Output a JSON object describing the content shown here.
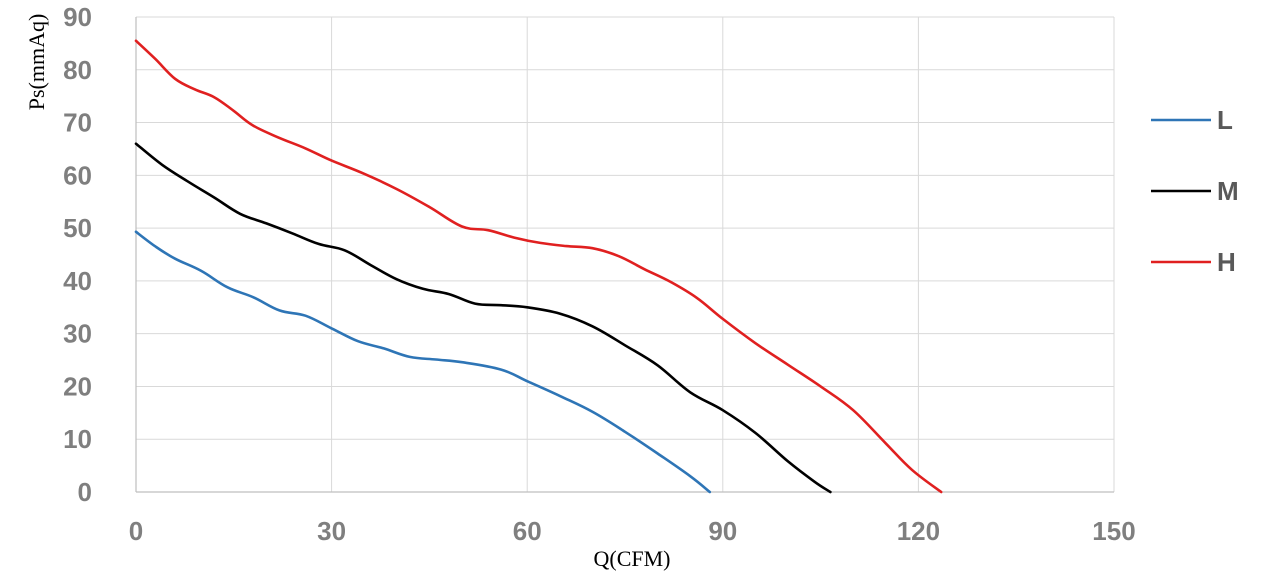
{
  "chart_data": {
    "type": "line",
    "xlabel": "Q(CFM)",
    "ylabel": "Ps(mmAq)",
    "xlim": [
      0,
      150
    ],
    "ylim": [
      0,
      90
    ],
    "xticks": [
      "0",
      "30",
      "60",
      "90",
      "120",
      "150"
    ],
    "yticks": [
      "0",
      "10",
      "20",
      "30",
      "40",
      "50",
      "60",
      "70",
      "80",
      "90"
    ],
    "grid": true,
    "legend_position": "right",
    "series": [
      {
        "name": "L",
        "color": "#2e75b6",
        "points": [
          [
            0,
            49.3
          ],
          [
            3,
            46.5
          ],
          [
            6,
            44.2
          ],
          [
            10,
            41.9
          ],
          [
            14,
            38.8
          ],
          [
            18,
            36.9
          ],
          [
            22,
            34.4
          ],
          [
            26,
            33.4
          ],
          [
            30,
            31
          ],
          [
            34,
            28.6
          ],
          [
            38,
            27.2
          ],
          [
            42,
            25.6
          ],
          [
            46,
            25.1
          ],
          [
            50,
            24.6
          ],
          [
            56,
            23.2
          ],
          [
            60,
            21
          ],
          [
            65,
            18.2
          ],
          [
            70,
            15.2
          ],
          [
            75,
            11.4
          ],
          [
            80,
            7.3
          ],
          [
            85,
            3
          ],
          [
            88,
            0
          ]
        ]
      },
      {
        "name": "M",
        "color": "#000000",
        "points": [
          [
            0,
            66
          ],
          [
            4,
            62
          ],
          [
            8,
            58.8
          ],
          [
            12,
            55.8
          ],
          [
            16,
            52.7
          ],
          [
            20,
            50.9
          ],
          [
            24,
            49
          ],
          [
            28,
            47
          ],
          [
            32,
            45.8
          ],
          [
            36,
            43
          ],
          [
            40,
            40.3
          ],
          [
            44,
            38.5
          ],
          [
            48,
            37.5
          ],
          [
            52,
            35.7
          ],
          [
            56,
            35.4
          ],
          [
            60,
            35
          ],
          [
            65,
            33.8
          ],
          [
            70,
            31.4
          ],
          [
            75,
            27.8
          ],
          [
            80,
            24
          ],
          [
            85,
            18.9
          ],
          [
            90,
            15.5
          ],
          [
            95,
            11.2
          ],
          [
            100,
            5.8
          ],
          [
            104,
            2
          ],
          [
            106.5,
            0
          ]
        ]
      },
      {
        "name": "H",
        "color": "#e02020",
        "points": [
          [
            0,
            85.5
          ],
          [
            3,
            82
          ],
          [
            6,
            78.3
          ],
          [
            9,
            76.3
          ],
          [
            12,
            74.8
          ],
          [
            15,
            72.2
          ],
          [
            18,
            69.4
          ],
          [
            22,
            67.1
          ],
          [
            26,
            65.1
          ],
          [
            30,
            62.8
          ],
          [
            35,
            60.3
          ],
          [
            40,
            57.4
          ],
          [
            45,
            54
          ],
          [
            50,
            50.3
          ],
          [
            54,
            49.6
          ],
          [
            58,
            48.2
          ],
          [
            62,
            47.2
          ],
          [
            66,
            46.6
          ],
          [
            70,
            46.2
          ],
          [
            74,
            44.7
          ],
          [
            78,
            42.2
          ],
          [
            82,
            39.8
          ],
          [
            86,
            36.8
          ],
          [
            90,
            32.8
          ],
          [
            95,
            28.2
          ],
          [
            100,
            24.1
          ],
          [
            105,
            20
          ],
          [
            110,
            15.5
          ],
          [
            115,
            9.2
          ],
          [
            119,
            4.2
          ],
          [
            123.5,
            0
          ]
        ]
      }
    ]
  }
}
